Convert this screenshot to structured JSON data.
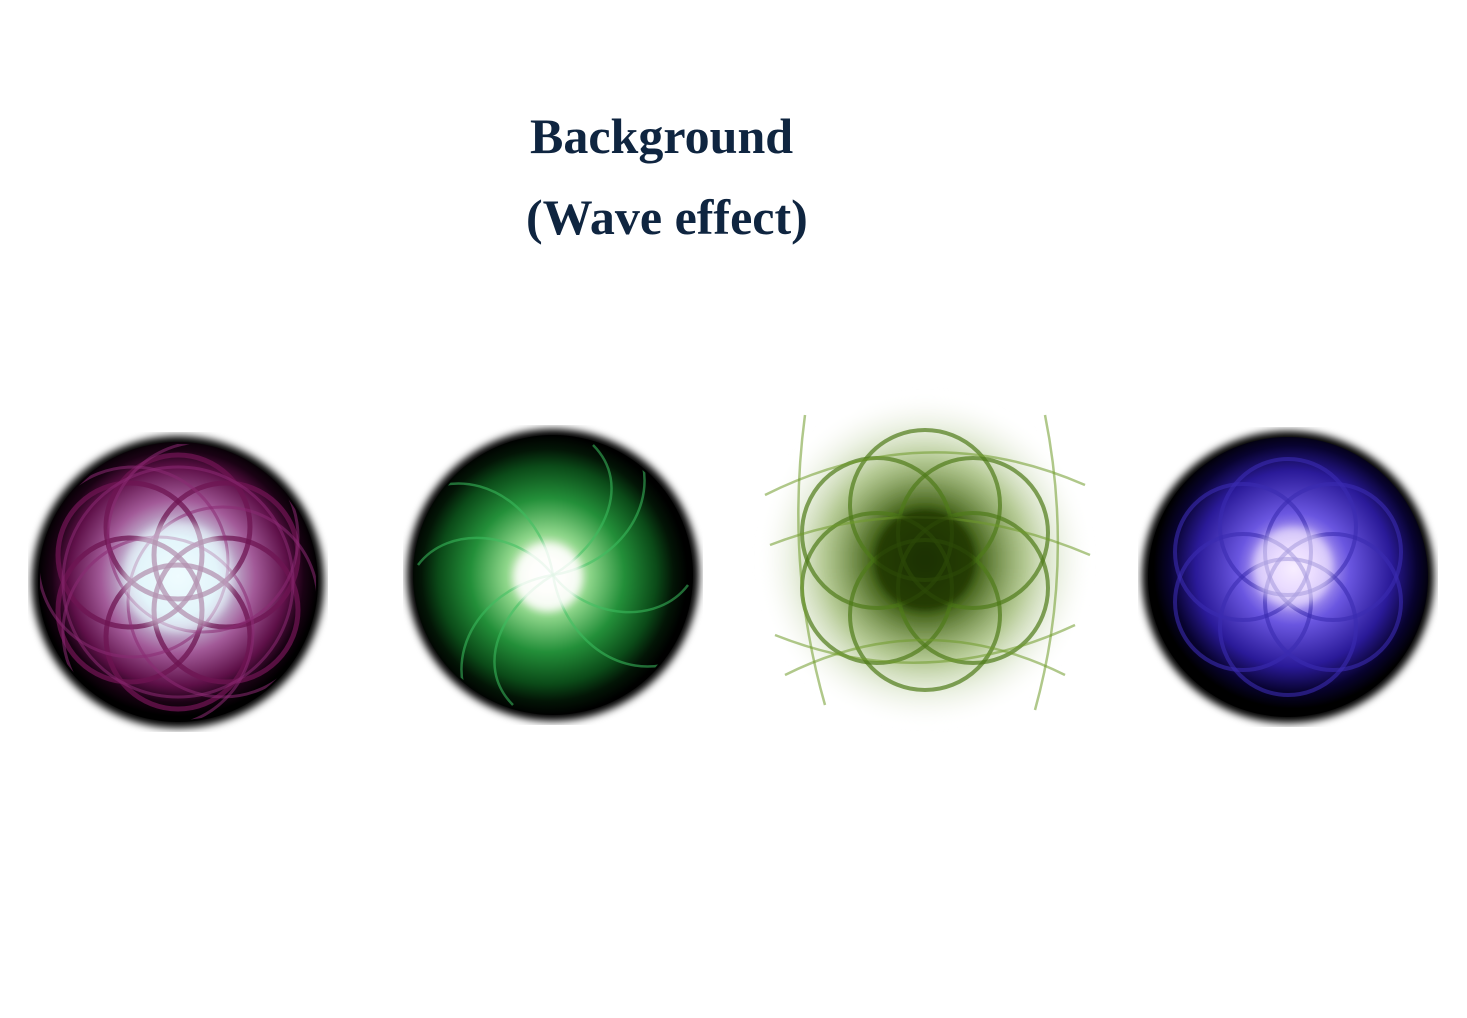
{
  "title": {
    "line1": "Background",
    "line2": "(Wave effect)",
    "color": "#0f2540"
  },
  "orbs": [
    {
      "name": "magenta-wave-orb",
      "colors": {
        "rim": "#000000",
        "strands": "#7a1a5e",
        "center": "#eafaff"
      }
    },
    {
      "name": "green-swirl-orb",
      "colors": {
        "rim": "#000000",
        "strands": "#1f9e3a",
        "center": "#ffffff"
      }
    },
    {
      "name": "olive-wave-flower",
      "colors": {
        "strands": "#4f7a18",
        "center": "#1c2e06"
      }
    },
    {
      "name": "violet-wave-orb",
      "colors": {
        "rim": "#000000",
        "strands": "#3a2bb0",
        "center": "#f3e6ff"
      }
    }
  ]
}
